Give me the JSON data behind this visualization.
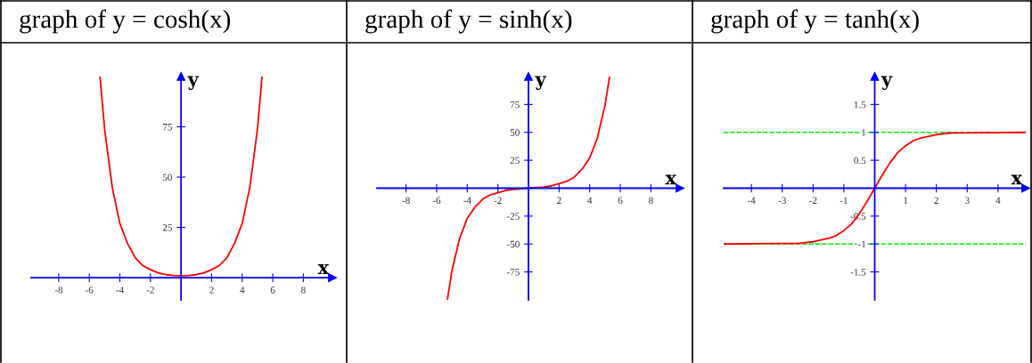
{
  "chart_data": [
    {
      "type": "line",
      "title": "graph of y = cosh(x)",
      "xlabel": "x",
      "ylabel": "y",
      "xlim": [
        -9.8,
        9.9
      ],
      "ylim": [
        -11,
        100
      ],
      "xticks": [
        -8,
        -6,
        -4,
        -2,
        2,
        4,
        6,
        8
      ],
      "yticks": [
        25,
        50,
        75
      ],
      "series": [
        {
          "color": "#ff0000",
          "x": [
            -5.3,
            -5,
            -4.5,
            -4,
            -3.5,
            -3,
            -2.5,
            -2,
            -1.5,
            -1,
            -0.5,
            0,
            0.5,
            1,
            1.5,
            2,
            2.5,
            3,
            3.5,
            4,
            4.5,
            5,
            5.3
          ],
          "values": [
            100,
            74,
            45,
            27,
            17,
            10,
            6,
            4,
            2.4,
            1.5,
            1.1,
            1,
            1.1,
            1.5,
            2.4,
            4,
            6,
            10,
            17,
            27,
            45,
            74,
            100
          ]
        }
      ]
    },
    {
      "type": "line",
      "title": "graph of y = sinh(x)",
      "xlabel": "x",
      "ylabel": "y",
      "xlim": [
        -9.9,
        9.9
      ],
      "ylim": [
        -100,
        100
      ],
      "xticks": [
        -8,
        -6,
        -4,
        -2,
        2,
        4,
        6,
        8
      ],
      "yticks": [
        -75,
        -50,
        -25,
        25,
        50,
        75
      ],
      "series": [
        {
          "color": "#ff0000",
          "x": [
            -5.3,
            -5,
            -4.5,
            -4,
            -3.5,
            -3,
            -2.5,
            -2,
            -1.5,
            -1,
            0,
            1,
            1.5,
            2,
            2.5,
            3,
            3.5,
            4,
            4.5,
            5,
            5.3
          ],
          "values": [
            -100,
            -74,
            -45,
            -27,
            -17,
            -10,
            -6,
            -4,
            -2,
            -1,
            0,
            1,
            2,
            4,
            6,
            10,
            17,
            27,
            45,
            74,
            100
          ]
        }
      ]
    },
    {
      "type": "line",
      "title": "graph of y = tanh(x)",
      "xlabel": "x",
      "ylabel": "y",
      "xlim": [
        -4.9,
        4.9
      ],
      "ylim": [
        -2,
        2
      ],
      "xticks": [
        -4,
        -3,
        -2,
        -1,
        1,
        2,
        3,
        4
      ],
      "yticks": [
        -1.5,
        -1,
        -0.5,
        0.5,
        1,
        1.5
      ],
      "ref_lines": [
        {
          "axis": "y",
          "value": 1,
          "color": "#00ee00",
          "line_style": "dashed"
        },
        {
          "axis": "y",
          "value": -1,
          "color": "#00ee00",
          "line_style": "dashed"
        }
      ],
      "series": [
        {
          "color": "#ff0000",
          "x": [
            -4.9,
            -3,
            -2.5,
            -2,
            -1.5,
            -1.25,
            -1,
            -0.75,
            -0.5,
            -0.25,
            0,
            0.25,
            0.5,
            0.75,
            1,
            1.25,
            1.5,
            2,
            2.5,
            3,
            4.9
          ],
          "values": [
            -1,
            -0.99,
            -0.99,
            -0.96,
            -0.9,
            -0.85,
            -0.76,
            -0.64,
            -0.46,
            -0.24,
            0,
            0.24,
            0.46,
            0.64,
            0.76,
            0.85,
            0.9,
            0.96,
            0.99,
            0.99,
            1
          ]
        }
      ]
    }
  ]
}
